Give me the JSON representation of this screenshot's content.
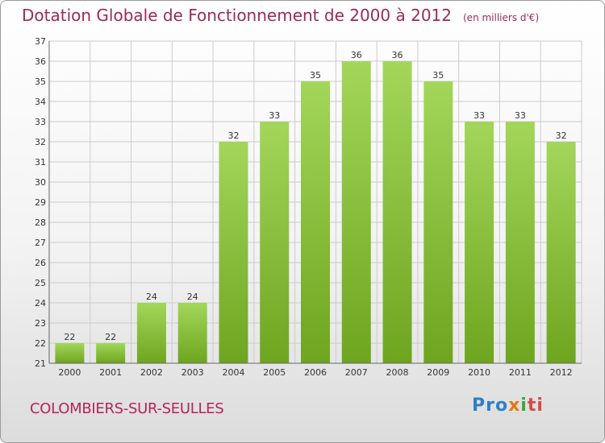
{
  "title": "Dotation Globale de Fonctionnement de 2000 à 2012",
  "unit_note": "(en milliers d'€)",
  "commune": "COLOMBIERS-SUR-SEULLES",
  "logo_text": "Proxiti",
  "colors": {
    "bar_light": "#a3d65a",
    "bar_dark": "#6ea51f",
    "title": "#9a2a5a",
    "grid": "#cccccc"
  },
  "chart_data": {
    "type": "bar",
    "title": "Dotation Globale de Fonctionnement de 2000 à 2012",
    "subtitle": "(en milliers d'€)",
    "categories": [
      "2000",
      "2001",
      "2002",
      "2003",
      "2004",
      "2005",
      "2006",
      "2007",
      "2008",
      "2009",
      "2010",
      "2011",
      "2012"
    ],
    "values": [
      22,
      22,
      24,
      24,
      32,
      33,
      35,
      36,
      36,
      35,
      33,
      33,
      32
    ],
    "ylim": [
      21,
      37
    ],
    "yticks": [
      21,
      22,
      23,
      24,
      25,
      26,
      27,
      28,
      29,
      30,
      31,
      32,
      33,
      34,
      35,
      36,
      37
    ],
    "grid": true,
    "legend": "none"
  }
}
